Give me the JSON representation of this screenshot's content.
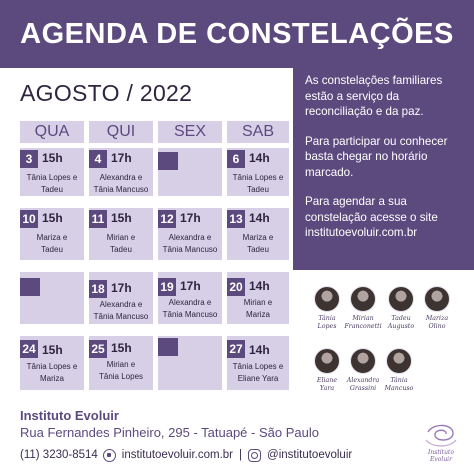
{
  "header": {
    "title": "AGENDA DE CONSTELAÇÕES"
  },
  "month": "AGOSTO / 2022",
  "info": {
    "p1": "As constelações familiares estão a serviço da reconciliação e da paz.",
    "p2": "Para participar ou conhecer basta chegar no horário marcado.",
    "p3": "Para agendar a sua constelação acesse o site institutoevoluir.com.br"
  },
  "calendar": {
    "days": [
      "QUA",
      "QUI",
      "SEX",
      "SAB"
    ],
    "rows": [
      [
        {
          "day": "3",
          "time": "15h",
          "names": [
            "Tânia Lopes e",
            "Tadeu"
          ]
        },
        {
          "day": "4",
          "time": "17h",
          "names": [
            "Alexandra e",
            "Tânia Mancuso"
          ]
        },
        {
          "day": "",
          "time": "",
          "names": []
        },
        {
          "day": "6",
          "time": "14h",
          "names": [
            "Tânia Lopes e",
            "Tadeu"
          ]
        }
      ],
      [
        {
          "day": "10",
          "time": "15h",
          "names": [
            "Mariza e",
            "Tadeu"
          ]
        },
        {
          "day": "11",
          "time": "15h",
          "names": [
            "Mirian e",
            "Tadeu"
          ]
        },
        {
          "day": "12",
          "time": "17h",
          "names": [
            "Alexandra e",
            "Tânia Mancuso"
          ]
        },
        {
          "day": "13",
          "time": "14h",
          "names": [
            "Mariza e",
            "Tadeu"
          ]
        }
      ],
      [
        {
          "day": "",
          "time": "",
          "names": []
        },
        {
          "day": "18",
          "time": "17h",
          "names": [
            "Alexandra e",
            "Tânia Mancuso"
          ]
        },
        {
          "day": "19",
          "time": "17h",
          "names": [
            "Alexandra e",
            "Tânia Mancuso"
          ]
        },
        {
          "day": "20",
          "time": "14h",
          "names": [
            "Mirian e",
            "Mariza"
          ]
        }
      ],
      [
        {
          "day": "24",
          "time": "15h",
          "names": [
            "Tânia Lopes e",
            "Mariza"
          ]
        },
        {
          "day": "25",
          "time": "15h",
          "names": [
            "Mirian e",
            "Tânia Lopes"
          ]
        },
        {
          "day": "",
          "time": "",
          "names": []
        },
        {
          "day": "27",
          "time": "14h",
          "names": [
            "Tânia Lopes e",
            "Eliane Yara"
          ]
        }
      ]
    ]
  },
  "people": [
    {
      "name1": "Tânia",
      "name2": "Lopes"
    },
    {
      "name1": "Mirian",
      "name2": "Franconetti"
    },
    {
      "name1": "Tadeu",
      "name2": "Augusto"
    },
    {
      "name1": "Mariza",
      "name2": "Olino"
    },
    {
      "name1": "Eliane",
      "name2": "Yara"
    },
    {
      "name1": "Alexandra",
      "name2": "Grassini"
    },
    {
      "name1": "Tânia",
      "name2": "Mancuso"
    }
  ],
  "footer": {
    "title": "Instituto Evoluir",
    "address": "Rua Fernandes Pinheiro, 295 - Tatuapé - São Paulo",
    "phone": "(11) 3230-8514",
    "site": "institutoevoluir.com.br",
    "instagram": "@institutoevoluir"
  },
  "logo": {
    "text": "Instituto Evoluir"
  },
  "colors": {
    "primary": "#5c4a7f",
    "cell": "#d6cfe6"
  }
}
